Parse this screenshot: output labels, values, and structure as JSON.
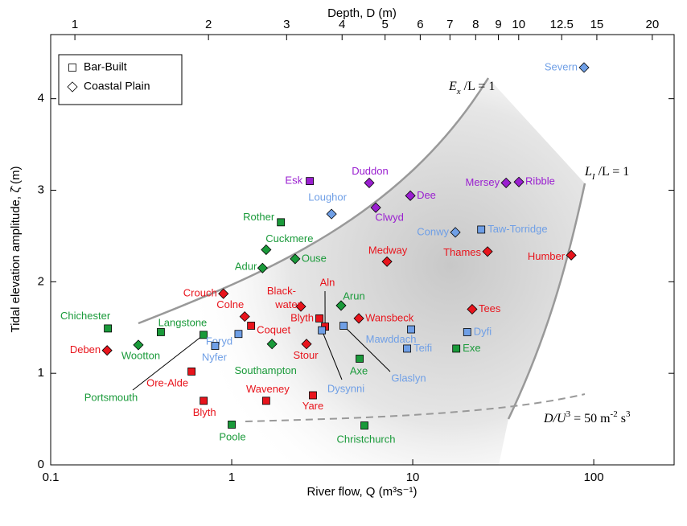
{
  "chart_data": {
    "type": "scatter",
    "xlabel": "River flow, Q (m³s⁻¹)",
    "ylabel": "Tidal elevation amplitude, ζ̂ (m)",
    "x2label": "Depth, D (m)",
    "xscale": "log",
    "x2scale": "log",
    "xlim": [
      0.1,
      278
    ],
    "ylim": [
      0,
      4.7
    ],
    "x2lim": [
      0.882,
      22.4
    ],
    "xticks": [
      0.1,
      1,
      10,
      100
    ],
    "yticks": [
      0,
      1,
      2,
      3,
      4
    ],
    "x2ticks": [
      1,
      2,
      3,
      4,
      5,
      6,
      7,
      8,
      9,
      10,
      12.5,
      15,
      20
    ],
    "legend": "upper left",
    "annotations": [
      [
        "E",
        "x",
        " /L = 1"
      ],
      [
        "L",
        "I",
        " /L = 1"
      ],
      [
        "D/U",
        "3",
        " = 50 m",
        "-2",
        " s",
        "3"
      ]
    ],
    "series": [
      {
        "name": "Bar-Built",
        "marker": "square",
        "labels": [
          "Esk",
          "Rother",
          "Taw-Torridge",
          "Blyth",
          "Aln",
          "Chichester",
          "Langstone",
          "Portsmouth",
          "Coquet",
          "Foryd",
          "Nyfer",
          "Dysynni",
          "Glaslyn",
          "Mawddach",
          "Teifi",
          "Dyfi",
          "Exe",
          "Axe",
          "Ore-Alde",
          "Yare",
          "Waveney",
          "Blyth",
          "Poole",
          "Christchurch"
        ],
        "x": [
          2.7,
          1.87,
          23.9,
          3.05,
          3.28,
          0.207,
          0.406,
          0.699,
          1.28,
          1.09,
          0.81,
          3.15,
          4.15,
          9.8,
          9.31,
          20.0,
          17.4,
          5.09,
          0.6,
          2.81,
          1.55,
          0.7,
          1.0,
          5.41
        ],
        "values": [
          3.1,
          2.65,
          2.57,
          1.6,
          1.51,
          1.49,
          1.45,
          1.42,
          1.52,
          1.43,
          1.3,
          1.47,
          1.52,
          1.48,
          1.27,
          1.45,
          1.27,
          1.16,
          1.02,
          0.76,
          0.7,
          0.7,
          0.44,
          0.43
        ],
        "colors": [
          "#9a1fd0",
          "#1a9a3a",
          "#6f9fe6",
          "#e8141c",
          "#e8141c",
          "#1a9a3a",
          "#1a9a3a",
          "#1a9a3a",
          "#e8141c",
          "#6f9fe6",
          "#6f9fe6",
          "#6f9fe6",
          "#6f9fe6",
          "#6f9fe6",
          "#6f9fe6",
          "#6f9fe6",
          "#1a9a3a",
          "#1a9a3a",
          "#e8141c",
          "#e8141c",
          "#e8141c",
          "#e8141c",
          "#1a9a3a",
          "#1a9a3a"
        ]
      },
      {
        "name": "Coastal Plain",
        "marker": "diamond",
        "labels": [
          "Severn",
          "Duddon",
          "Dee",
          "Clwyd",
          "Loughor",
          "Mersey",
          "Ribble",
          "Conwy",
          "Cuckmere",
          "Ouse",
          "Medway",
          "Thames",
          "Humber",
          "Adur",
          "Crouch",
          [
            "Black-",
            "water"
          ],
          "Arun",
          "Wansbeck",
          "Tees",
          "Deben",
          "Wootton",
          "Southampton",
          "Stour",
          "Colne"
        ],
        "x": [
          88.4,
          5.75,
          9.7,
          6.25,
          3.56,
          32.8,
          38.6,
          17.2,
          1.55,
          2.24,
          7.21,
          25.9,
          75.1,
          1.48,
          0.9,
          2.41,
          4.02,
          5.04,
          21.3,
          0.205,
          0.305,
          1.67,
          2.59,
          1.18
        ],
        "values": [
          4.34,
          3.08,
          2.94,
          2.81,
          2.74,
          3.08,
          3.09,
          2.54,
          2.35,
          2.25,
          2.22,
          2.33,
          2.29,
          2.15,
          1.87,
          1.73,
          1.74,
          1.6,
          1.7,
          1.25,
          1.31,
          1.32,
          1.32,
          1.62
        ],
        "colors": [
          "#6f9fe6",
          "#9a1fd0",
          "#9a1fd0",
          "#9a1fd0",
          "#6f9fe6",
          "#9a1fd0",
          "#9a1fd0",
          "#6f9fe6",
          "#1a9a3a",
          "#1a9a3a",
          "#e8141c",
          "#e8141c",
          "#e8141c",
          "#1a9a3a",
          "#e8141c",
          "#e8141c",
          "#1a9a3a",
          "#e8141c",
          "#e8141c",
          "#e8141c",
          "#1a9a3a",
          "#1a9a3a",
          "#e8141c",
          "#e8141c"
        ]
      }
    ]
  }
}
